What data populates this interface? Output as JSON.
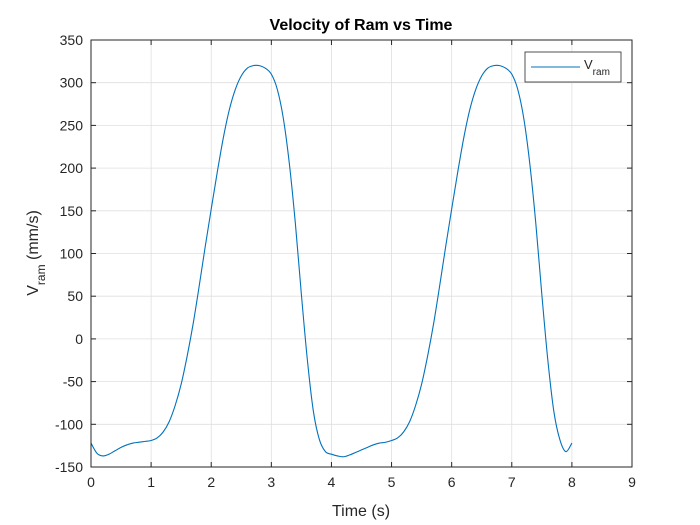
{
  "chart_data": {
    "type": "line",
    "title": "Velocity of Ram vs Time",
    "xlabel": "Time (s)",
    "ylabel_main": "V",
    "ylabel_sub": "ram",
    "ylabel_unit": " (mm/s)",
    "xlim": [
      0,
      9
    ],
    "ylim": [
      -150,
      350
    ],
    "xticks": [
      0,
      1,
      2,
      3,
      4,
      5,
      6,
      7,
      8,
      9
    ],
    "yticks": [
      -150,
      -100,
      -50,
      0,
      50,
      100,
      150,
      200,
      250,
      300,
      350
    ],
    "grid": true,
    "legend_position": "top-right",
    "line_color": "#0072BD",
    "series": [
      {
        "label_main": "V",
        "label_sub": "ram",
        "x": [
          0,
          0.1,
          0.2,
          0.3,
          0.4,
          0.5,
          0.6,
          0.7,
          0.8,
          0.9,
          1.0,
          1.1,
          1.2,
          1.3,
          1.4,
          1.5,
          1.6,
          1.7,
          1.8,
          1.9,
          2.0,
          2.1,
          2.2,
          2.3,
          2.4,
          2.5,
          2.6,
          2.7,
          2.8,
          2.9,
          3.0,
          3.1,
          3.2,
          3.3,
          3.4,
          3.5,
          3.6,
          3.7,
          3.8,
          3.9,
          4.0,
          4.1,
          4.2,
          4.3,
          4.4,
          4.5,
          4.6,
          4.7,
          4.8,
          4.9,
          5.0,
          5.1,
          5.2,
          5.3,
          5.4,
          5.5,
          5.6,
          5.7,
          5.8,
          5.9,
          6.0,
          6.1,
          6.2,
          6.3,
          6.4,
          6.5,
          6.6,
          6.7,
          6.8,
          6.9,
          7.0,
          7.1,
          7.2,
          7.3,
          7.4,
          7.5,
          7.6,
          7.7,
          7.8,
          7.9,
          8.0
        ],
        "y": [
          -122,
          -134,
          -137,
          -135,
          -131,
          -127,
          -124,
          -122,
          -121,
          -120,
          -119,
          -116,
          -109,
          -97,
          -78,
          -53,
          -20,
          18,
          62,
          108,
          152,
          195,
          235,
          268,
          292,
          308,
          317,
          320,
          320,
          317,
          310,
          292,
          258,
          205,
          135,
          52,
          -25,
          -85,
          -118,
          -132,
          -135,
          -137,
          -138,
          -136,
          -133,
          -130,
          -127,
          -124,
          -122,
          -121,
          -119,
          -116,
          -109,
          -97,
          -78,
          -53,
          -20,
          18,
          62,
          108,
          152,
          195,
          235,
          268,
          292,
          308,
          317,
          320,
          320,
          317,
          310,
          292,
          258,
          205,
          135,
          52,
          -25,
          -85,
          -118,
          -132,
          -122
        ]
      }
    ]
  }
}
